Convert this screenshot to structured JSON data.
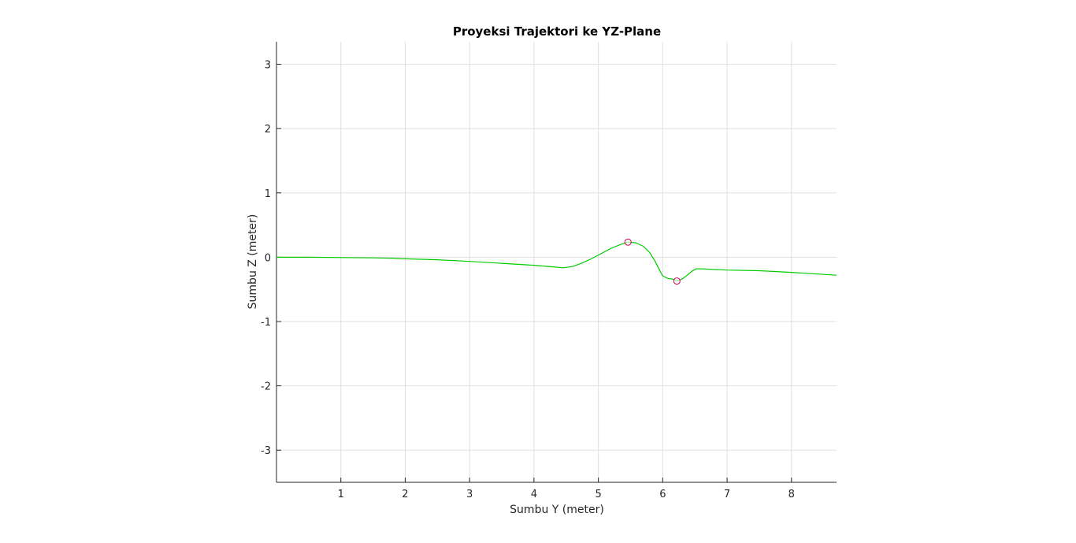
{
  "chart_data": {
    "type": "line",
    "title": "Proyeksi Trajektori ke YZ-Plane",
    "xlabel": "Sumbu Y (meter)",
    "ylabel": "Sumbu Z (meter)",
    "xlim": [
      0,
      8.7
    ],
    "ylim": [
      -3.5,
      3.35
    ],
    "xticks": [
      "1",
      "2",
      "3",
      "4",
      "5",
      "6",
      "7",
      "8"
    ],
    "yticks": [
      "-3",
      "-2",
      "-1",
      "0",
      "1",
      "2",
      "3"
    ],
    "grid": true,
    "series": [
      {
        "color": "#00cc00",
        "x": [
          0,
          0.5,
          1.0,
          1.5,
          1.8,
          2.0,
          2.5,
          3.0,
          3.5,
          4.0,
          4.3,
          4.45,
          4.6,
          4.75,
          4.9,
          5.05,
          5.2,
          5.35,
          5.46,
          5.58,
          5.7,
          5.8,
          5.88,
          5.95,
          6.0,
          6.08,
          6.15,
          6.22,
          6.3,
          6.38,
          6.45,
          6.52,
          6.6,
          7.0,
          7.5,
          8.0,
          8.7
        ],
        "y": [
          0.0,
          0.0,
          -0.005,
          -0.01,
          -0.015,
          -0.025,
          -0.04,
          -0.065,
          -0.095,
          -0.125,
          -0.15,
          -0.165,
          -0.145,
          -0.09,
          -0.02,
          0.06,
          0.14,
          0.2,
          0.235,
          0.225,
          0.17,
          0.07,
          -0.06,
          -0.2,
          -0.29,
          -0.33,
          -0.34,
          -0.37,
          -0.34,
          -0.28,
          -0.22,
          -0.18,
          -0.18,
          -0.2,
          -0.21,
          -0.235,
          -0.28
        ]
      }
    ],
    "markers": [
      {
        "x": 5.46,
        "y": 0.235,
        "edge_color": "#cc0066",
        "face_color": "#ffffff",
        "shape": "circle"
      },
      {
        "x": 6.22,
        "y": -0.37,
        "edge_color": "#cc0066",
        "face_color": "#ffffff",
        "shape": "circle"
      }
    ]
  }
}
